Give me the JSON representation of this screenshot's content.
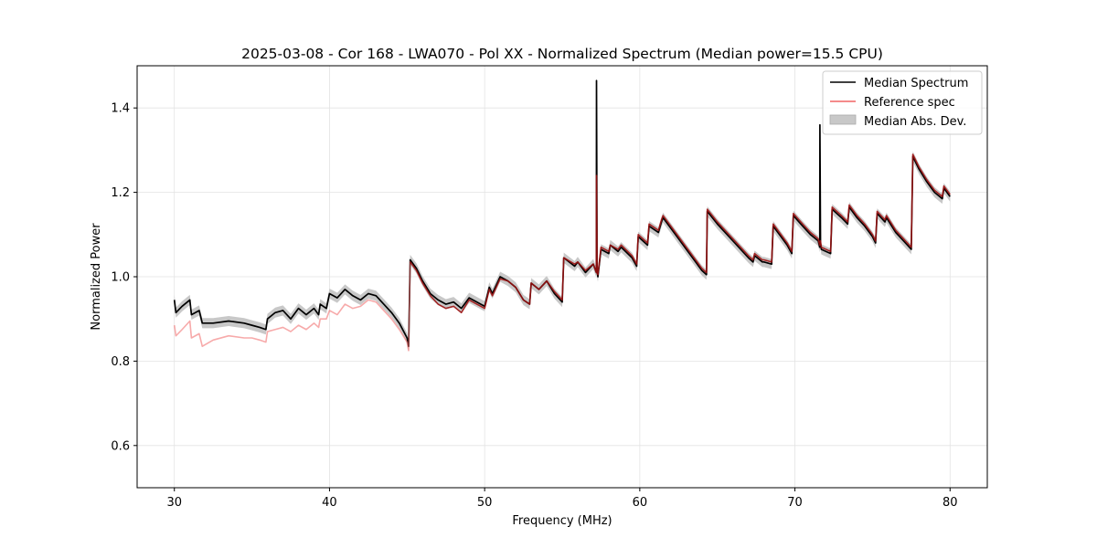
{
  "chart_data": {
    "type": "line",
    "title": "2025-03-08 - Cor 168 - LWA070 - Pol XX - Normalized Spectrum (Median power=15.5 CPU)",
    "xlabel": "Frequency (MHz)",
    "ylabel": "Normalized Power",
    "xlim": [
      27.6,
      82.4
    ],
    "ylim": [
      0.5,
      1.5
    ],
    "xticks": [
      30,
      40,
      50,
      60,
      70,
      80
    ],
    "yticks": [
      0.6,
      0.8,
      1.0,
      1.2,
      1.4
    ],
    "xtick_labels": [
      "30",
      "40",
      "50",
      "60",
      "70",
      "80"
    ],
    "ytick_labels": [
      "0.6",
      "0.8",
      "1.0",
      "1.2",
      "1.4"
    ],
    "grid": true,
    "legend_position": "top-right",
    "legend": [
      "Median Spectrum",
      "Reference spec",
      "Median Abs. Dev."
    ],
    "colors": {
      "median": "#000000",
      "reference": "#f06464",
      "mad": "#c8c8c8",
      "overlap": "#8b0000"
    },
    "mad_halfwidth": 0.012,
    "series": [
      {
        "name": "Median Spectrum",
        "x": [
          30.0,
          30.1,
          30.5,
          31.0,
          31.1,
          31.6,
          31.8,
          32.5,
          33.5,
          34.5,
          35.0,
          35.5,
          35.9,
          36.0,
          36.5,
          37.0,
          37.5,
          38.0,
          38.5,
          39.0,
          39.3,
          39.4,
          39.8,
          40.0,
          40.5,
          41.0,
          41.5,
          42.0,
          42.5,
          43.0,
          43.5,
          44.0,
          44.5,
          45.0,
          45.1,
          45.2,
          45.6,
          46.0,
          46.5,
          47.0,
          47.5,
          48.0,
          48.5,
          49.0,
          49.5,
          50.0,
          50.3,
          50.5,
          51.0,
          51.5,
          52.0,
          52.5,
          52.9,
          53.0,
          53.5,
          54.0,
          54.5,
          55.0,
          55.1,
          55.8,
          56.0,
          56.5,
          57.0,
          57.2,
          57.21,
          57.25,
          57.3,
          57.5,
          58.0,
          58.1,
          58.6,
          58.8,
          59.5,
          59.8,
          59.9,
          60.5,
          60.6,
          61.2,
          61.4,
          61.5,
          62.0,
          62.5,
          63.0,
          63.5,
          64.0,
          64.3,
          64.35,
          65.0,
          66.0,
          67.0,
          67.3,
          67.4,
          67.9,
          68.0,
          68.5,
          68.6,
          69.0,
          69.5,
          69.8,
          69.9,
          70.5,
          71.0,
          71.5,
          71.6,
          71.61,
          71.65,
          71.7,
          72.3,
          72.4,
          73.0,
          73.4,
          73.5,
          74.0,
          74.5,
          75.0,
          75.2,
          75.3,
          75.8,
          75.9,
          76.5,
          77.0,
          77.5,
          77.6,
          78.0,
          78.5,
          79.0,
          79.5,
          79.6,
          80.0
        ],
        "values": [
          0.945,
          0.915,
          0.93,
          0.945,
          0.91,
          0.92,
          0.89,
          0.89,
          0.895,
          0.89,
          0.885,
          0.88,
          0.875,
          0.9,
          0.915,
          0.92,
          0.9,
          0.925,
          0.91,
          0.925,
          0.91,
          0.935,
          0.925,
          0.96,
          0.95,
          0.97,
          0.955,
          0.945,
          0.96,
          0.955,
          0.935,
          0.915,
          0.89,
          0.855,
          0.835,
          1.04,
          1.02,
          0.99,
          0.96,
          0.945,
          0.935,
          0.94,
          0.925,
          0.95,
          0.94,
          0.93,
          0.975,
          0.96,
          1.0,
          0.99,
          0.975,
          0.945,
          0.935,
          0.985,
          0.97,
          0.99,
          0.96,
          0.94,
          1.045,
          1.025,
          1.035,
          1.01,
          1.03,
          1.01,
          1.465,
          1.01,
          1.0,
          1.065,
          1.055,
          1.075,
          1.06,
          1.07,
          1.045,
          1.025,
          1.095,
          1.075,
          1.12,
          1.105,
          1.13,
          1.14,
          1.115,
          1.09,
          1.065,
          1.04,
          1.015,
          1.005,
          1.155,
          1.125,
          1.085,
          1.045,
          1.035,
          1.05,
          1.035,
          1.035,
          1.03,
          1.12,
          1.1,
          1.075,
          1.055,
          1.145,
          1.12,
          1.1,
          1.085,
          1.07,
          1.36,
          1.08,
          1.065,
          1.055,
          1.16,
          1.14,
          1.125,
          1.165,
          1.14,
          1.12,
          1.095,
          1.08,
          1.15,
          1.13,
          1.14,
          1.105,
          1.085,
          1.065,
          1.285,
          1.255,
          1.225,
          1.2,
          1.185,
          1.21,
          1.19
        ]
      },
      {
        "name": "Reference spec",
        "x": [
          30.0,
          30.1,
          30.5,
          31.0,
          31.1,
          31.6,
          31.8,
          32.5,
          33.5,
          34.5,
          35.0,
          35.5,
          35.9,
          36.0,
          36.5,
          37.0,
          37.5,
          38.0,
          38.5,
          39.0,
          39.3,
          39.4,
          39.8,
          40.0,
          40.5,
          41.0,
          41.5,
          42.0,
          42.5,
          43.0,
          43.5,
          44.0,
          44.5,
          45.0,
          45.1,
          45.2,
          45.6,
          46.0,
          46.5,
          47.0,
          47.5,
          48.0,
          48.5,
          49.0,
          49.5,
          50.0,
          50.3,
          50.5,
          51.0,
          51.5,
          52.0,
          52.5,
          52.9,
          53.0,
          53.5,
          54.0,
          54.5,
          55.0,
          55.1,
          55.8,
          56.0,
          56.5,
          57.0,
          57.2,
          57.21,
          57.25,
          57.3,
          57.5,
          58.0,
          58.1,
          58.6,
          58.8,
          59.5,
          59.8,
          59.9,
          60.5,
          60.6,
          61.2,
          61.4,
          61.5,
          62.0,
          62.5,
          63.0,
          63.5,
          64.0,
          64.3,
          64.35,
          65.0,
          66.0,
          67.0,
          67.3,
          67.4,
          67.9,
          68.0,
          68.5,
          68.6,
          69.0,
          69.5,
          69.8,
          69.9,
          70.5,
          71.0,
          71.5,
          71.6,
          71.61,
          71.65,
          71.7,
          72.3,
          72.4,
          73.0,
          73.4,
          73.5,
          74.0,
          74.5,
          75.0,
          75.2,
          75.3,
          75.8,
          75.9,
          76.5,
          77.0,
          77.5,
          77.6,
          78.0,
          78.5,
          79.0,
          79.5,
          79.6,
          80.0
        ],
        "values": [
          0.885,
          0.86,
          0.875,
          0.895,
          0.855,
          0.865,
          0.835,
          0.85,
          0.86,
          0.855,
          0.855,
          0.85,
          0.845,
          0.87,
          0.875,
          0.88,
          0.87,
          0.885,
          0.875,
          0.89,
          0.88,
          0.9,
          0.9,
          0.92,
          0.91,
          0.935,
          0.925,
          0.93,
          0.945,
          0.94,
          0.92,
          0.9,
          0.875,
          0.845,
          0.825,
          1.035,
          1.015,
          0.985,
          0.955,
          0.935,
          0.925,
          0.93,
          0.915,
          0.945,
          0.935,
          0.925,
          0.97,
          0.955,
          0.995,
          0.99,
          0.975,
          0.945,
          0.935,
          0.985,
          0.97,
          0.99,
          0.965,
          0.945,
          1.045,
          1.03,
          1.035,
          1.015,
          1.03,
          1.01,
          1.24,
          1.01,
          1.005,
          1.07,
          1.06,
          1.075,
          1.065,
          1.075,
          1.05,
          1.03,
          1.1,
          1.08,
          1.125,
          1.11,
          1.135,
          1.145,
          1.12,
          1.095,
          1.07,
          1.045,
          1.02,
          1.01,
          1.16,
          1.13,
          1.09,
          1.05,
          1.04,
          1.055,
          1.04,
          1.04,
          1.035,
          1.125,
          1.105,
          1.08,
          1.06,
          1.15,
          1.125,
          1.105,
          1.09,
          1.075,
          1.08,
          1.085,
          1.07,
          1.06,
          1.165,
          1.145,
          1.13,
          1.17,
          1.145,
          1.125,
          1.1,
          1.085,
          1.155,
          1.135,
          1.145,
          1.11,
          1.09,
          1.07,
          1.29,
          1.26,
          1.23,
          1.205,
          1.19,
          1.215,
          1.195
        ]
      }
    ]
  }
}
